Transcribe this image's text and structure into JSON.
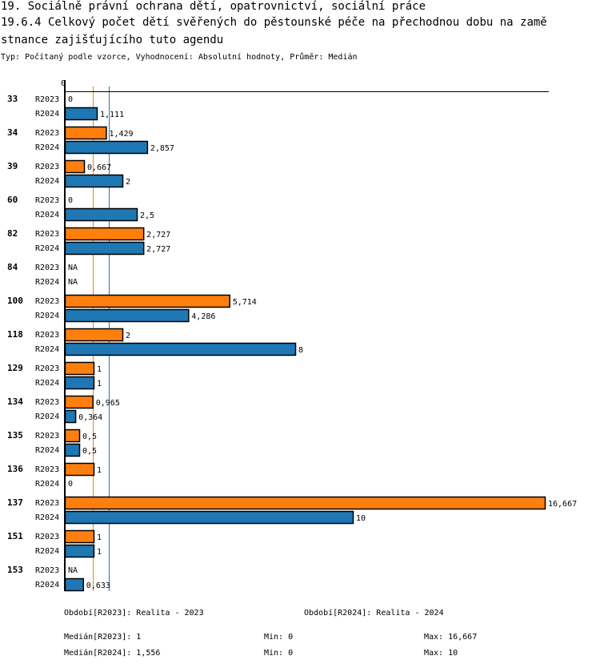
{
  "header": {
    "title_line1": "19. Sociálně právní ochrana dětí, opatrovnictví, sociální práce",
    "title_line2": "19.6.4 Celkový počet dětí svěřených do pěstounské péče na přechodnou dobu na zamě",
    "title_line3": "stnance zajišťujícího tuto agendu",
    "subtitle": "Typ: Počítaný podle vzorce, Vyhodnocení: Absolutní hodnoty, Průměr: Medián"
  },
  "colors": {
    "R2023": "#ff7f0e",
    "R2024": "#1f77b4",
    "axis": "#000000"
  },
  "chart_data": {
    "type": "bar",
    "orientation": "horizontal",
    "title": "19.6.4 Celkový počet dětí svěřených do pěstounské péče na přechodnou dobu na zaměstnance zajišťujícího tuto agendu",
    "xlabel": "",
    "ylabel": "",
    "x_tick_labels": [
      "0"
    ],
    "xlim": [
      0,
      16.667
    ],
    "categories": [
      "33",
      "34",
      "39",
      "60",
      "82",
      "84",
      "100",
      "118",
      "129",
      "134",
      "135",
      "136",
      "137",
      "151",
      "153"
    ],
    "series": [
      {
        "name": "R2023",
        "values": [
          0,
          1.429,
          0.667,
          0,
          2.727,
          null,
          5.714,
          2,
          1,
          0.965,
          0.5,
          1,
          16.667,
          1,
          null
        ],
        "labels": [
          "0",
          "1,429",
          "0,667",
          "0",
          "2,727",
          "NA",
          "5,714",
          "2",
          "1",
          "0,965",
          "0,5",
          "1",
          "16,667",
          "1",
          "NA"
        ]
      },
      {
        "name": "R2024",
        "values": [
          1.111,
          2.857,
          2,
          2.5,
          2.727,
          null,
          4.286,
          8,
          1,
          0.364,
          0.5,
          0,
          10,
          1,
          0.633
        ],
        "labels": [
          "1,111",
          "2,857",
          "2",
          "2,5",
          "2,727",
          "NA",
          "4,286",
          "8",
          "1",
          "0,364",
          "0,5",
          "0",
          "10",
          "1",
          "0,633"
        ]
      }
    ],
    "medians": {
      "R2023": 1,
      "R2024": 1.556
    },
    "grid": false
  },
  "legend": {
    "period_2023": "Období[R2023]: Realita - 2023",
    "period_2024": "Období[R2024]: Realita - 2024",
    "median_2023": "Medián[R2023]: 1",
    "min_2023": "Min: 0",
    "max_2023": "Max: 16,667",
    "median_2024": "Medián[R2024]: 1,556",
    "min_2024": "Min: 0",
    "max_2024": "Max: 10"
  }
}
